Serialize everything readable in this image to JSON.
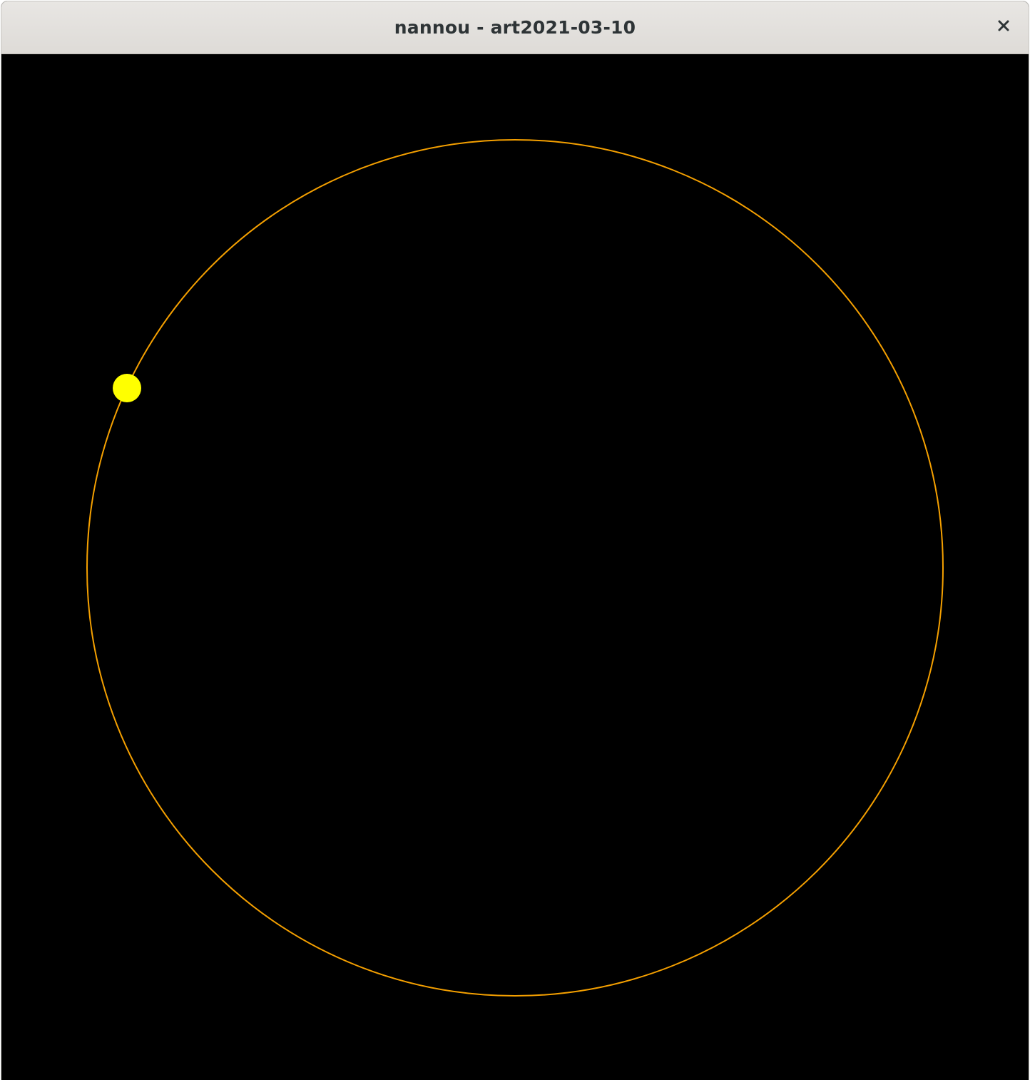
{
  "window": {
    "title": "nannou - art2021-03-10",
    "close_icon": "close-icon"
  },
  "sketch": {
    "background_color": "#000000",
    "orbit": {
      "stroke_color": "#f5a000"
    },
    "dot": {
      "fill_color": "#ffff00"
    }
  }
}
